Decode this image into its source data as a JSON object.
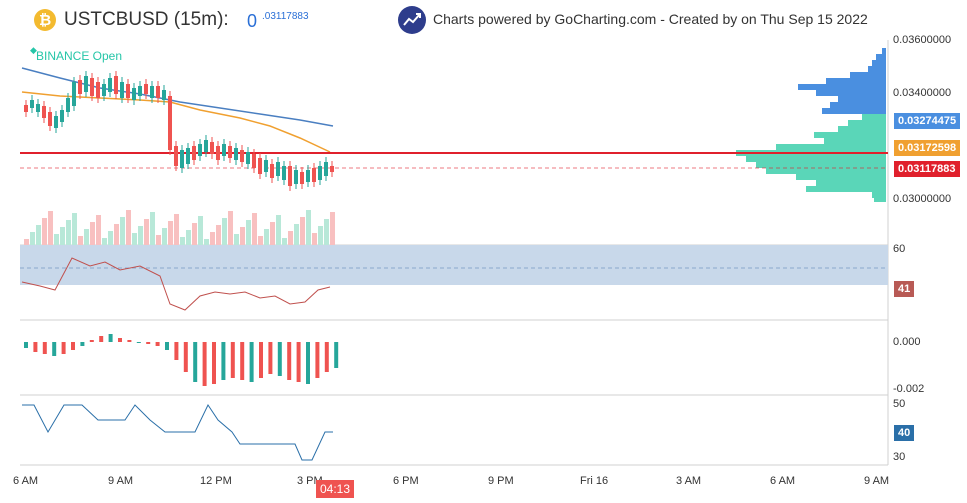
{
  "header": {
    "logo_glyph": "₿",
    "symbol": "USTCBUSD (15m):",
    "price_big": "0",
    "price_small": ".03117883",
    "credits": "Charts powered by GoCharting.com - Created by  on Thu Sep 15 2022",
    "exchange_status": "BINANCE Open"
  },
  "price_axis": {
    "ticks": [
      "0.03600000",
      "0.03400000",
      "0.03000000"
    ],
    "tags": {
      "blue": "0.03274475",
      "orange": "0.03172598",
      "red": "0.03117883"
    }
  },
  "rsi_axis": {
    "tick": "60",
    "tag": "41"
  },
  "macd_axis": {
    "ticks": [
      "0.000",
      "-0.002"
    ]
  },
  "osc_axis": {
    "ticks": [
      "50",
      "30"
    ],
    "tag": "40"
  },
  "time_axis": {
    "labels": [
      "6 AM",
      "9 AM",
      "12 PM",
      "3 PM",
      "6 PM",
      "9 PM",
      "Fri 16",
      "3 AM",
      "6 AM",
      "9 AM"
    ],
    "countdown": "04:13"
  },
  "colors": {
    "up": "#26a69a",
    "down": "#ef5350",
    "blue_ma": "#4a7fc1",
    "orange_ma": "#f0a030",
    "red_line": "#e0202c",
    "profile_green": "#5ad6b8",
    "profile_blue": "#4a8fe0",
    "rsi_band": "#c8d8ea",
    "rsi_line": "#c0504d",
    "osc_line": "#2a6fa8"
  }
}
